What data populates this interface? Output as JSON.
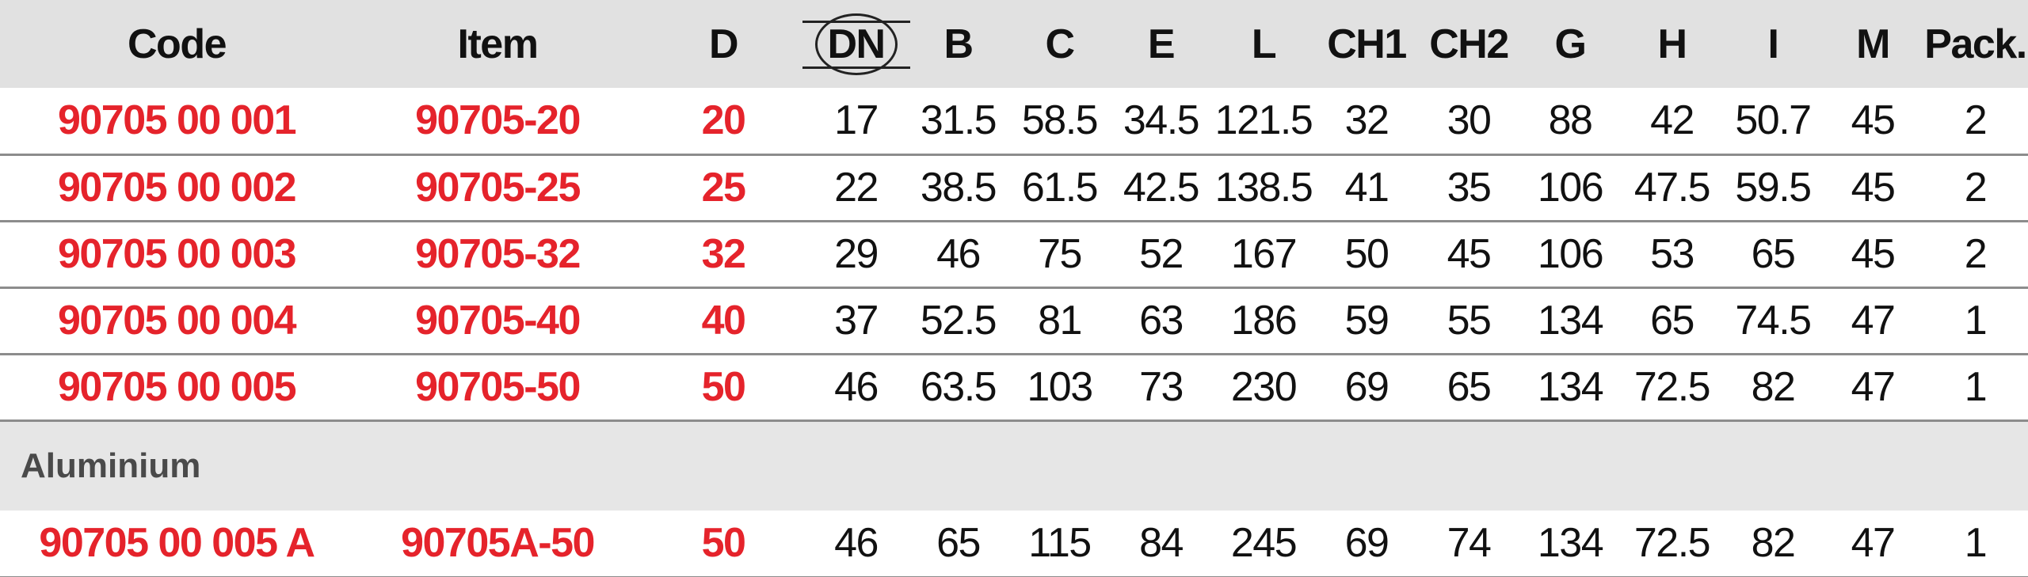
{
  "table": {
    "columns": [
      "Code",
      "Item",
      "D",
      "DN",
      "B",
      "C",
      "E",
      "L",
      "CH1",
      "CH2",
      "G",
      "H",
      "I",
      "M",
      "Pack."
    ],
    "rows": [
      [
        "90705 00 001",
        "90705-20",
        20,
        17,
        31.5,
        58.5,
        34.5,
        121.5,
        32,
        30,
        88,
        42,
        50.7,
        45,
        2
      ],
      [
        "90705 00 002",
        "90705-25",
        25,
        22,
        38.5,
        61.5,
        42.5,
        138.5,
        41,
        35,
        106,
        47.5,
        59.5,
        45,
        2
      ],
      [
        "90705 00 003",
        "90705-32",
        32,
        29,
        46,
        75,
        52,
        167,
        50,
        45,
        106,
        53,
        65,
        45,
        2
      ],
      [
        "90705 00 004",
        "90705-40",
        40,
        37,
        52.5,
        81,
        63,
        186,
        59,
        55,
        134,
        65,
        74.5,
        47,
        1
      ],
      [
        "90705 00 005",
        "90705-50",
        50,
        46,
        63.5,
        103,
        73,
        230,
        69,
        65,
        134,
        72.5,
        82,
        47,
        1
      ]
    ]
  },
  "section": {
    "label": "Aluminium",
    "rows": [
      [
        "90705 00 005 A",
        "90705A-50",
        50,
        46,
        65,
        115,
        84,
        245,
        69,
        74,
        134,
        72.5,
        82,
        47,
        1
      ]
    ]
  }
}
